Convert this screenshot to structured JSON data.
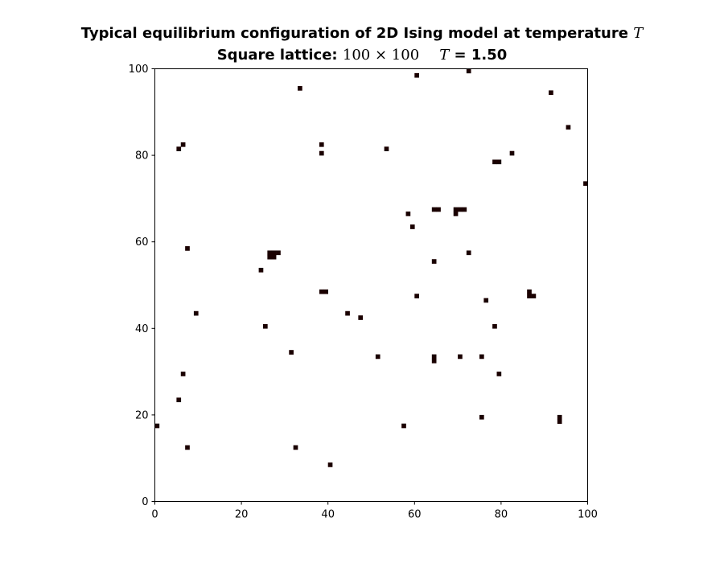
{
  "chart_data": {
    "type": "heatmap",
    "title_main": "Typical equilibrium configuration of 2D Ising model at temperature",
    "title_main_var": "T",
    "subtitle_label": "Square lattice:",
    "subtitle_size": "100 × 100",
    "subtitle_var": "T",
    "subtitle_value": "= 1.50",
    "xlim": [
      0,
      100
    ],
    "ylim": [
      0,
      100
    ],
    "xticks": [
      "0",
      "20",
      "40",
      "60",
      "80",
      "100"
    ],
    "yticks": [
      "0",
      "20",
      "40",
      "60",
      "80",
      "100"
    ],
    "grid": false,
    "lattice_size": 100,
    "temperature": 1.5,
    "background_spin": 1,
    "colors": {
      "up": "#ffffff",
      "down": "#1a0000",
      "frame": "#000000"
    },
    "minority_cells": [
      [
        72,
        99
      ],
      [
        60,
        98
      ],
      [
        33,
        95
      ],
      [
        91,
        94
      ],
      [
        95,
        86
      ],
      [
        6,
        82
      ],
      [
        5,
        81
      ],
      [
        38,
        82
      ],
      [
        38,
        80
      ],
      [
        53,
        81
      ],
      [
        82,
        80
      ],
      [
        78,
        78
      ],
      [
        79,
        78
      ],
      [
        99,
        73
      ],
      [
        64,
        67
      ],
      [
        65,
        67
      ],
      [
        69,
        67
      ],
      [
        70,
        67
      ],
      [
        71,
        67
      ],
      [
        69,
        66
      ],
      [
        58,
        66
      ],
      [
        59,
        63
      ],
      [
        7,
        58
      ],
      [
        26,
        57
      ],
      [
        27,
        57
      ],
      [
        28,
        57
      ],
      [
        26,
        56
      ],
      [
        27,
        56
      ],
      [
        72,
        57
      ],
      [
        64,
        55
      ],
      [
        24,
        53
      ],
      [
        38,
        48
      ],
      [
        39,
        48
      ],
      [
        86,
        48
      ],
      [
        86,
        47
      ],
      [
        87,
        47
      ],
      [
        60,
        47
      ],
      [
        76,
        46
      ],
      [
        9,
        43
      ],
      [
        44,
        43
      ],
      [
        47,
        42
      ],
      [
        25,
        40
      ],
      [
        78,
        40
      ],
      [
        31,
        34
      ],
      [
        51,
        33
      ],
      [
        64,
        33
      ],
      [
        64,
        32
      ],
      [
        70,
        33
      ],
      [
        75,
        33
      ],
      [
        6,
        29
      ],
      [
        79,
        29
      ],
      [
        5,
        23
      ],
      [
        75,
        19
      ],
      [
        93,
        19
      ],
      [
        93,
        18
      ],
      [
        0,
        17
      ],
      [
        57,
        17
      ],
      [
        7,
        12
      ],
      [
        32,
        12
      ],
      [
        40,
        8
      ]
    ]
  }
}
